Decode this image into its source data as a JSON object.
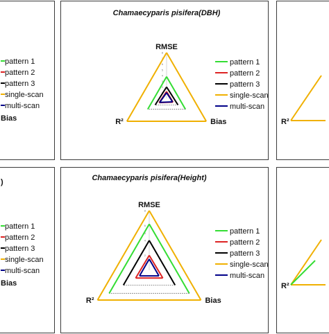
{
  "chart_data": [
    {
      "type": "radar",
      "axes": [
        "RMSE",
        "Bias",
        "R²"
      ],
      "legend_items": [
        "pattern  1",
        "pattern  2",
        "pattern  3",
        "single-scan",
        "multi-scan",
        "Bias"
      ],
      "colors": [
        "#33dd33",
        "#dd2222",
        "#000000",
        "#f0b000",
        "#000088"
      ],
      "note": "left panel, cropped"
    },
    {
      "type": "radar",
      "title": "Chamaecyparis pisifera(DBH)",
      "axes": [
        "RMSE",
        "Bias",
        "R²"
      ],
      "ticks": [
        "8",
        "7",
        "6",
        "5",
        "4",
        "3",
        "2",
        "1"
      ],
      "rmax": 8,
      "legend_placement": "right",
      "series": [
        {
          "name": "pattern  1",
          "color": "#33dd33",
          "values": [
            3.8,
            3.8,
            3.8
          ],
          "dashed_segments": [
            1
          ]
        },
        {
          "name": "pattern  2",
          "color": "#dd2222",
          "values": [
            1.2,
            1.3,
            1.5
          ]
        },
        {
          "name": "pattern  3",
          "color": "#000000",
          "values": [
            2.0,
            2.3,
            2.3
          ],
          "dashed_segments": [
            1
          ]
        },
        {
          "name": "single-scan",
          "color": "#f0b000",
          "values": [
            8,
            8,
            8
          ]
        },
        {
          "name": "multi-scan",
          "color": "#000088",
          "values": [
            1.0,
            1.2,
            1.4
          ]
        }
      ]
    },
    {
      "type": "radar",
      "axes": [
        "R²"
      ],
      "note": "right panel, cropped"
    },
    {
      "type": "radar",
      "title_fragment": ")",
      "legend_items": [
        "pattern  1",
        "pattern  2",
        "pattern  3",
        "single-scan",
        "multi-scan",
        "Bias"
      ],
      "colors": [
        "#33dd33",
        "#dd2222",
        "#000000",
        "#f0b000",
        "#000088"
      ],
      "note": "left panel, cropped"
    },
    {
      "type": "radar",
      "title": "Chamaecyparis pisifera(Height)",
      "axes": [
        "RMSE",
        "Bias",
        "R²"
      ],
      "ticks": [
        "8",
        "7",
        "6",
        "5",
        "4",
        "3",
        "2",
        "1"
      ],
      "rmax": 8,
      "legend_placement": "right",
      "series": [
        {
          "name": "pattern  1",
          "color": "#33dd33",
          "values": [
            6.2,
            6.2,
            6.2
          ],
          "dashed_segments": [
            1
          ]
        },
        {
          "name": "pattern  2",
          "color": "#dd2222",
          "values": [
            2.0,
            2.1,
            2.1
          ]
        },
        {
          "name": "pattern  3",
          "color": "#000000",
          "values": [
            4.0,
            4.0,
            4.0
          ],
          "dashed_segments": [
            1
          ]
        },
        {
          "name": "single-scan",
          "color": "#f0b000",
          "values": [
            8,
            8,
            8
          ]
        },
        {
          "name": "multi-scan",
          "color": "#000088",
          "values": [
            1.5,
            1.5,
            1.5
          ]
        }
      ]
    },
    {
      "type": "radar",
      "axes": [
        "R²"
      ],
      "note": "right panel, cropped"
    }
  ]
}
